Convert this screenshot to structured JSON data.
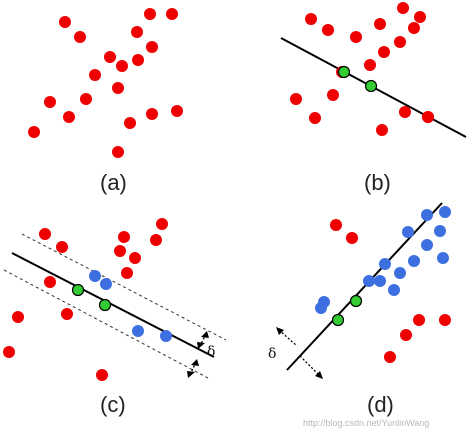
{
  "panels": [
    {
      "id": "a",
      "label": "(a)",
      "points": [
        {
          "color": "red"
        },
        {
          "color": "red"
        },
        {
          "color": "red"
        },
        {
          "color": "red"
        },
        {
          "color": "red"
        },
        {
          "color": "red"
        },
        {
          "color": "red"
        },
        {
          "color": "red"
        },
        {
          "color": "red"
        },
        {
          "color": "red"
        },
        {
          "color": "red"
        },
        {
          "color": "red"
        },
        {
          "color": "red"
        },
        {
          "color": "red"
        },
        {
          "color": "red"
        },
        {
          "color": "red"
        },
        {
          "color": "red"
        },
        {
          "color": "red"
        },
        {
          "color": "red"
        }
      ]
    },
    {
      "id": "b",
      "label": "(b)",
      "points": [
        {
          "color": "red"
        },
        {
          "color": "red"
        },
        {
          "color": "red"
        },
        {
          "color": "red"
        },
        {
          "color": "red"
        },
        {
          "color": "red"
        },
        {
          "color": "red"
        },
        {
          "color": "red"
        },
        {
          "color": "red"
        },
        {
          "color": "red"
        },
        {
          "color": "red"
        },
        {
          "color": "red"
        },
        {
          "color": "red"
        },
        {
          "color": "red"
        },
        {
          "color": "red"
        },
        {
          "color": "red"
        },
        {
          "color": "red"
        },
        {
          "color": "green"
        },
        {
          "color": "green"
        },
        {
          "color": "red"
        }
      ]
    },
    {
      "id": "c",
      "label": "(c)",
      "delta_label": "δ",
      "points": [
        {
          "color": "red"
        },
        {
          "color": "red"
        },
        {
          "color": "red"
        },
        {
          "color": "red"
        },
        {
          "color": "red"
        },
        {
          "color": "red"
        },
        {
          "color": "red"
        },
        {
          "color": "red"
        },
        {
          "color": "red"
        },
        {
          "color": "red"
        },
        {
          "color": "red"
        },
        {
          "color": "red"
        },
        {
          "color": "red"
        },
        {
          "color": "blue"
        },
        {
          "color": "blue"
        },
        {
          "color": "green"
        },
        {
          "color": "green"
        },
        {
          "color": "blue"
        },
        {
          "color": "blue"
        }
      ]
    },
    {
      "id": "d",
      "label": "(d)",
      "delta_label": "δ",
      "points": [
        {
          "color": "red"
        },
        {
          "color": "red"
        },
        {
          "color": "red"
        },
        {
          "color": "red"
        },
        {
          "color": "red"
        },
        {
          "color": "red"
        },
        {
          "color": "blue"
        },
        {
          "color": "blue"
        },
        {
          "color": "blue"
        },
        {
          "color": "blue"
        },
        {
          "color": "blue"
        },
        {
          "color": "blue"
        },
        {
          "color": "blue"
        },
        {
          "color": "blue"
        },
        {
          "color": "blue"
        },
        {
          "color": "blue"
        },
        {
          "color": "blue"
        },
        {
          "color": "blue"
        },
        {
          "color": "blue"
        },
        {
          "color": "green"
        },
        {
          "color": "green"
        },
        {
          "color": "blue"
        }
      ]
    }
  ],
  "watermark": "http://blog.csdn.net/YunlinWang",
  "colors": {
    "red": "#ee0000",
    "green": "#33cc33",
    "blue": "#3d6fe0",
    "line": "#000000",
    "dashed": "#333333"
  }
}
